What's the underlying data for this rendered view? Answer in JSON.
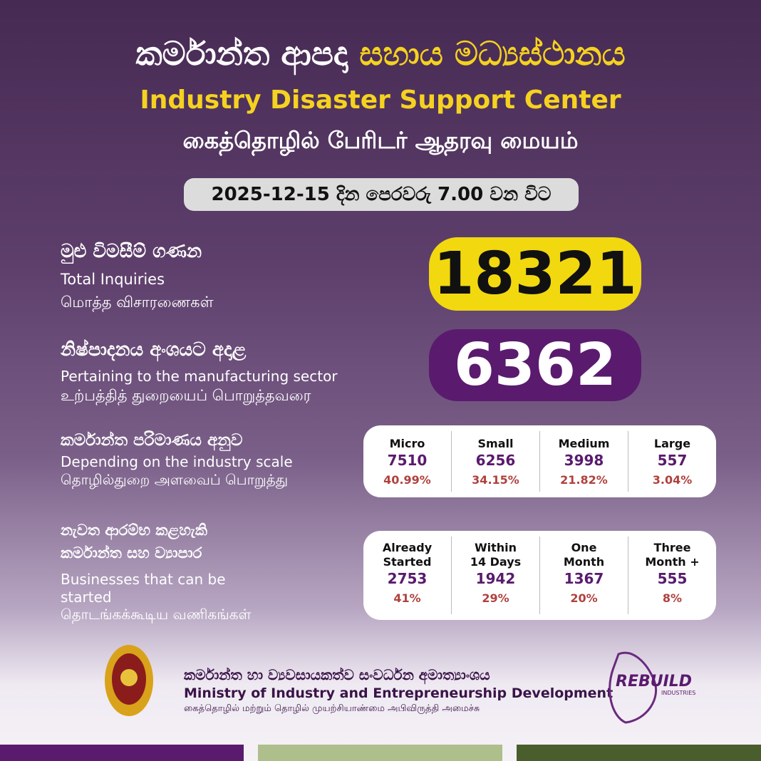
{
  "header": {
    "title_part1": "කර්මාන්ත ආපදා",
    "title_part2": "සහාය මධ්‍යස්ථානය",
    "english": "Industry Disaster Support Center",
    "tamil": "கைத்தொழில் பேரிடர் ஆதரவு மையம்",
    "date": "2025-12-15 දින පෙරවරු 7.00 වන විට"
  },
  "total": {
    "sinhala": "මුළු විමසීම් ගණන",
    "english": "Total Inquiries",
    "tamil": "மொத்த விசாரணைகள்",
    "value": "18321"
  },
  "manufacturing": {
    "sinhala": "නිෂ්පාදනය අංශයට අදාළ",
    "english": "Pertaining to the manufacturing sector",
    "tamil": "உற்பத்தித் துறையைப் பொறுத்தவரை",
    "value": "6362"
  },
  "scale": {
    "sinhala": "කර්මාන්ත පරිමාණය අනුව",
    "english": "Depending on the industry scale",
    "tamil": "தொழில்துறை அளவைப் பொறுத்து",
    "columns": [
      {
        "label": [
          "Micro"
        ],
        "value": "7510",
        "percent": "40.99%"
      },
      {
        "label": [
          "Small"
        ],
        "value": "6256",
        "percent": "34.15%"
      },
      {
        "label": [
          "Medium"
        ],
        "value": "3998",
        "percent": "21.82%"
      },
      {
        "label": [
          "Large"
        ],
        "value": "557",
        "percent": "3.04%"
      }
    ]
  },
  "restart": {
    "sinhala": [
      "නැවත ආරම්භ කළහැකි",
      "කර්මාන්ත සහ ව්‍යාපාර"
    ],
    "english": [
      "Businesses that can be",
      "started"
    ],
    "tamil": "தொடங்கக்கூடிய வணிகங்கள்",
    "columns": [
      {
        "label": [
          "Already",
          "Started"
        ],
        "value": "2753",
        "percent": "41%"
      },
      {
        "label": [
          "Within",
          "14 Days"
        ],
        "value": "1942",
        "percent": "29%"
      },
      {
        "label": [
          "One",
          "Month"
        ],
        "value": "1367",
        "percent": "20%"
      },
      {
        "label": [
          "Three",
          "Month +"
        ],
        "value": "555",
        "percent": "8%"
      }
    ]
  },
  "footer": {
    "sinhala": "කර්මාන්ත හා ව්‍යවසායකත්ව සංවර්ධන අමාත්‍යාංශය",
    "english": "Ministry of Industry and Entrepreneurship Development",
    "tamil": "கைத்தொழில் மற்றும் தொழில் முயற்சியாண்மை அபிவிருத்தி அமைச்சு",
    "logo_title": "REBUILD",
    "logo_subtitle": "INDUSTRIES"
  }
}
